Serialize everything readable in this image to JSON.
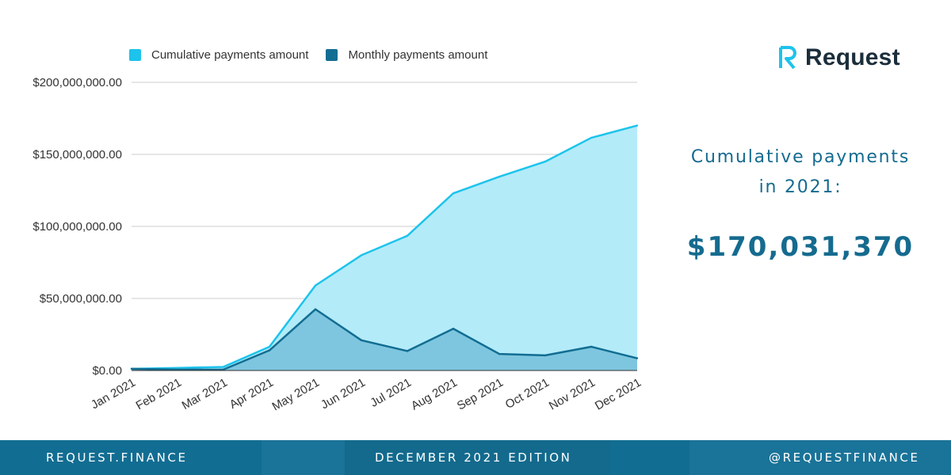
{
  "chart_data": {
    "type": "area",
    "categories": [
      "Jan 2021",
      "Feb 2021",
      "Mar 2021",
      "Apr 2021",
      "May 2021",
      "Jun 2021",
      "Jul 2021",
      "Aug 2021",
      "Sep 2021",
      "Oct 2021",
      "Nov 2021",
      "Dec 2021"
    ],
    "series": [
      {
        "name": "Cumulative payments amount",
        "color": "#1dc3ec",
        "fill": "#b3ebf9",
        "values": [
          1200000,
          1800000,
          2500000,
          16500000,
          59000000,
          80000000,
          93500000,
          123000000,
          134500000,
          145000000,
          161500000,
          170031370
        ]
      },
      {
        "name": "Monthly payments amount",
        "color": "#126d92",
        "fill": "#7ec6df",
        "values": [
          1200000,
          600000,
          700000,
          14000000,
          42500000,
          21000000,
          13500000,
          29000000,
          11500000,
          10500000,
          16500000,
          8500000
        ]
      }
    ],
    "ylim": [
      0,
      200000000
    ],
    "yticks": [
      0,
      50000000,
      100000000,
      150000000,
      200000000
    ],
    "ytick_labels": [
      "$0.00",
      "$50,000,000.00",
      "$100,000,000.00",
      "$150,000,000.00",
      "$200,000,000.00"
    ],
    "xlabel": "",
    "ylabel": "",
    "grid": true,
    "legend_position": "top"
  },
  "brand": {
    "name": "Request",
    "logo_icon": "request-r-logo-icon",
    "logo_color": "#1dc3ec",
    "text_color": "#1b2e3b"
  },
  "summary": {
    "label_line1": "Cumulative payments",
    "label_line2": "in 2021:",
    "value": "$170,031,370",
    "color": "#156b8f"
  },
  "footer": {
    "left": "REQUEST.FINANCE",
    "center": "DECEMBER 2021 EDITION",
    "right": "@REQUESTFINANCE",
    "bg_color": "#126d92"
  }
}
